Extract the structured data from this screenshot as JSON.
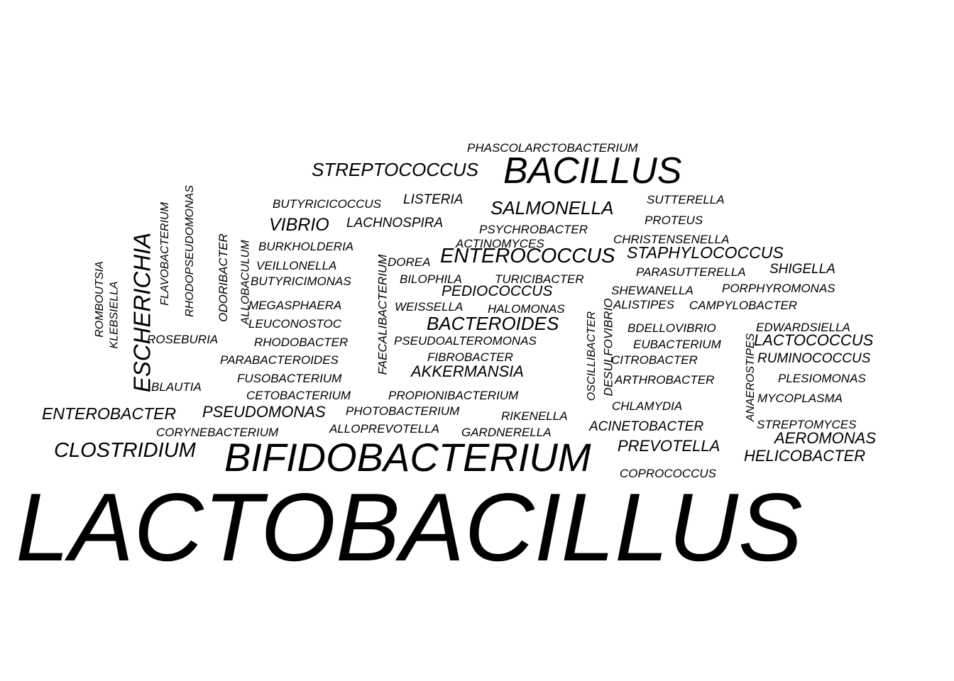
{
  "words": [
    {
      "text": "LACTOBACILLUS",
      "slug": "lactobacillus"
    },
    {
      "text": "BIFIDOBACTERIUM",
      "slug": "bifidobacterium"
    },
    {
      "text": "BACILLUS",
      "slug": "bacillus"
    },
    {
      "text": "CLOSTRIDIUM",
      "slug": "clostridium"
    },
    {
      "text": "ESCHERICHIA",
      "slug": "escherichia"
    },
    {
      "text": "ENTEROCOCCUS",
      "slug": "enterococcus"
    },
    {
      "text": "STREPTOCOCCUS",
      "slug": "streptococcus"
    },
    {
      "text": "SALMONELLA",
      "slug": "salmonella"
    },
    {
      "text": "BACTEROIDES",
      "slug": "bacteroides"
    },
    {
      "text": "STAPHYLOCOCCUS",
      "slug": "staphylococcus"
    },
    {
      "text": "AKKERMANSIA",
      "slug": "akkermansia"
    },
    {
      "text": "ENTEROBACTER",
      "slug": "enterobacter"
    },
    {
      "text": "PSEUDOMONAS",
      "slug": "pseudomonas"
    },
    {
      "text": "PREVOTELLA",
      "slug": "prevotella"
    },
    {
      "text": "VIBRIO",
      "slug": "vibrio"
    },
    {
      "text": "LACTOCOCCUS",
      "slug": "lactococcus"
    },
    {
      "text": "AEROMONAS",
      "slug": "aeromonas"
    },
    {
      "text": "HELICOBACTER",
      "slug": "helicobacter"
    },
    {
      "text": "PEDIOCOCCUS",
      "slug": "pediococcus"
    },
    {
      "text": "PHASCOLARCTOBACTERIUM",
      "slug": "phascolarctobacterium"
    },
    {
      "text": "LISTERIA",
      "slug": "listeria"
    },
    {
      "text": "BUTYRICICOCCUS",
      "slug": "butyricicoccus"
    },
    {
      "text": "SUTTERELLA",
      "slug": "sutterella"
    },
    {
      "text": "PROTEUS",
      "slug": "proteus"
    },
    {
      "text": "LACHNOSPIRA",
      "slug": "lachnospira"
    },
    {
      "text": "PSYCHROBACTER",
      "slug": "psychrobacter"
    },
    {
      "text": "CHRISTENSENELLA",
      "slug": "christensenella"
    },
    {
      "text": "BURKHOLDERIA",
      "slug": "burkholderia"
    },
    {
      "text": "ACTINOMYCES",
      "slug": "actinomyces"
    },
    {
      "text": "DOREA",
      "slug": "dorea"
    },
    {
      "text": "VEILLONELLA",
      "slug": "veillonella"
    },
    {
      "text": "PARASUTTERELLA",
      "slug": "parasutterella"
    },
    {
      "text": "SHIGELLA",
      "slug": "shigella"
    },
    {
      "text": "BUTYRICIMONAS",
      "slug": "butyricimonas"
    },
    {
      "text": "BILOPHILA",
      "slug": "bilophila"
    },
    {
      "text": "TURICIBACTER",
      "slug": "turicibacter"
    },
    {
      "text": "SHEWANELLA",
      "slug": "shewanella"
    },
    {
      "text": "PORPHYROMONAS",
      "slug": "porphyromonas"
    },
    {
      "text": "MEGASPHAERA",
      "slug": "megasphaera"
    },
    {
      "text": "WEISSELLA",
      "slug": "weissella"
    },
    {
      "text": "HALOMONAS",
      "slug": "halomonas"
    },
    {
      "text": "ALISTIPES",
      "slug": "alistipes"
    },
    {
      "text": "CAMPYLOBACTER",
      "slug": "campylobacter"
    },
    {
      "text": "LEUCONOSTOC",
      "slug": "leuconostoc"
    },
    {
      "text": "BDELLOVIBRIO",
      "slug": "bdellovibrio"
    },
    {
      "text": "EDWARDSIELLA",
      "slug": "edwardsiella"
    },
    {
      "text": "ROSEBURIA",
      "slug": "roseburia"
    },
    {
      "text": "RHODOBACTER",
      "slug": "rhodobacter"
    },
    {
      "text": "PSEUDOALTEROMONAS",
      "slug": "pseudoalteromonas"
    },
    {
      "text": "EUBACTERIUM",
      "slug": "eubacterium"
    },
    {
      "text": "PARABACTEROIDES",
      "slug": "parabacteroides"
    },
    {
      "text": "FIBROBACTER",
      "slug": "fibrobacter"
    },
    {
      "text": "CITROBACTER",
      "slug": "citrobacter"
    },
    {
      "text": "RUMINOCOCCUS",
      "slug": "ruminococcus"
    },
    {
      "text": "FUSOBACTERIUM",
      "slug": "fusobacterium"
    },
    {
      "text": "ARTHROBACTER",
      "slug": "arthrobacter"
    },
    {
      "text": "PLESIOMONAS",
      "slug": "plesiomonas"
    },
    {
      "text": "BLAUTIA",
      "slug": "blautia"
    },
    {
      "text": "CETOBACTERIUM",
      "slug": "cetobacterium"
    },
    {
      "text": "PROPIONIBACTERIUM",
      "slug": "propionibacterium"
    },
    {
      "text": "MYCOPLASMA",
      "slug": "mycoplasma"
    },
    {
      "text": "CHLAMYDIA",
      "slug": "chlamydia"
    },
    {
      "text": "PHOTOBACTERIUM",
      "slug": "photobacterium"
    },
    {
      "text": "RIKENELLA",
      "slug": "rikenella"
    },
    {
      "text": "STREPTOMYCES",
      "slug": "streptomyces"
    },
    {
      "text": "ACINETOBACTER",
      "slug": "acinetobacter"
    },
    {
      "text": "ALLOPREVOTELLA",
      "slug": "alloprevotella"
    },
    {
      "text": "CORYNEBACTERIUM",
      "slug": "corynebacterium"
    },
    {
      "text": "GARDNERELLA",
      "slug": "gardnerella"
    },
    {
      "text": "COPROCOCCUS",
      "slug": "coprococcus"
    },
    {
      "text": "ROMBOUTSIA",
      "slug": "romboutsia"
    },
    {
      "text": "KLEBSIELLA",
      "slug": "klebsiella"
    },
    {
      "text": "FLAVOBACTERIUM",
      "slug": "flavobacterium"
    },
    {
      "text": "RHODOPSEUDOMONAS",
      "slug": "rhodopseudomonas"
    },
    {
      "text": "ODORIBACTER",
      "slug": "odoribacter"
    },
    {
      "text": "ALLOBACULUM",
      "slug": "allobaculum"
    },
    {
      "text": "FAECALIBACTERIUM",
      "slug": "faecalibacterium"
    },
    {
      "text": "OSCILLIBACTER",
      "slug": "oscillibacter"
    },
    {
      "text": "DESULFOVIBRIO",
      "slug": "desulfovibrio"
    },
    {
      "text": "ANAEROSTIPES",
      "slug": "anaerostipes"
    }
  ]
}
